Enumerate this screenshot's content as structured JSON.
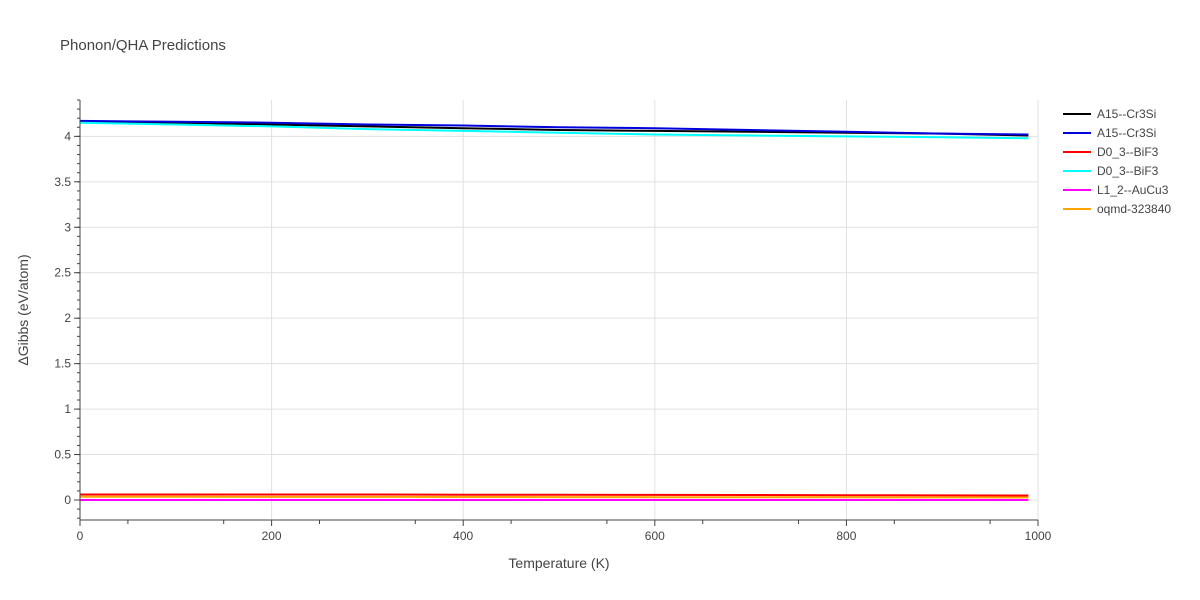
{
  "chart_data": {
    "type": "line",
    "title": "Phonon/QHA Predictions",
    "xlabel": "Temperature (K)",
    "ylabel": "ΔGibbs (eV/atom)",
    "xlim": [
      0,
      1000
    ],
    "ylim": [
      -0.22,
      4.4
    ],
    "x_ticks": [
      0,
      200,
      400,
      600,
      800,
      1000
    ],
    "x_tick_labels": [
      "0",
      "200",
      "400",
      "600",
      "800",
      "1000"
    ],
    "y_ticks": [
      0,
      0.5,
      1,
      1.5,
      2,
      2.5,
      3,
      3.5,
      4
    ],
    "y_tick_labels": [
      "0",
      "0.5",
      "1",
      "1.5",
      "2",
      "2.5",
      "3",
      "3.5",
      "4"
    ],
    "grid": true,
    "legend_position": "right",
    "series": [
      {
        "name": "A15--Cr3Si",
        "color": "#000000",
        "x": [
          0,
          100,
          200,
          300,
          400,
          500,
          600,
          700,
          800,
          900,
          990
        ],
        "y": [
          4.16,
          4.15,
          4.13,
          4.11,
          4.09,
          4.07,
          4.06,
          4.05,
          4.04,
          4.03,
          4.01
        ]
      },
      {
        "name": "A15--Cr3Si",
        "color": "#0000dd",
        "x": [
          0,
          100,
          200,
          300,
          400,
          500,
          600,
          700,
          800,
          900,
          990
        ],
        "y": [
          4.17,
          4.16,
          4.15,
          4.13,
          4.12,
          4.1,
          4.09,
          4.07,
          4.05,
          4.03,
          4.02
        ]
      },
      {
        "name": "D0_3--BiF3",
        "color": "#ff0000",
        "x": [
          0,
          100,
          200,
          300,
          400,
          500,
          600,
          700,
          800,
          900,
          990
        ],
        "y": [
          0.06,
          0.06,
          0.06,
          0.06,
          0.058,
          0.057,
          0.056,
          0.055,
          0.053,
          0.051,
          0.05
        ]
      },
      {
        "name": "D0_3--BiF3",
        "color": "#00ffff",
        "x": [
          0,
          100,
          200,
          300,
          400,
          500,
          600,
          700,
          800,
          900,
          990
        ],
        "y": [
          4.15,
          4.13,
          4.11,
          4.08,
          4.06,
          4.04,
          4.02,
          4.01,
          4.0,
          3.99,
          3.98
        ]
      },
      {
        "name": "L1_2--AuCu3",
        "color": "#ff00ff",
        "x": [
          0,
          100,
          200,
          300,
          400,
          500,
          600,
          700,
          800,
          900,
          990
        ],
        "y": [
          0.0,
          0.0,
          0.0,
          0.0,
          0.0,
          0.0,
          0.0,
          0.0,
          0.0,
          0.0,
          0.0
        ]
      },
      {
        "name": "oqmd-323840",
        "color": "#ffa500",
        "x": [
          0,
          100,
          200,
          300,
          400,
          500,
          600,
          700,
          800,
          900,
          990
        ],
        "y": [
          0.035,
          0.035,
          0.034,
          0.034,
          0.033,
          0.032,
          0.031,
          0.03,
          0.03,
          0.029,
          0.028
        ]
      }
    ]
  }
}
